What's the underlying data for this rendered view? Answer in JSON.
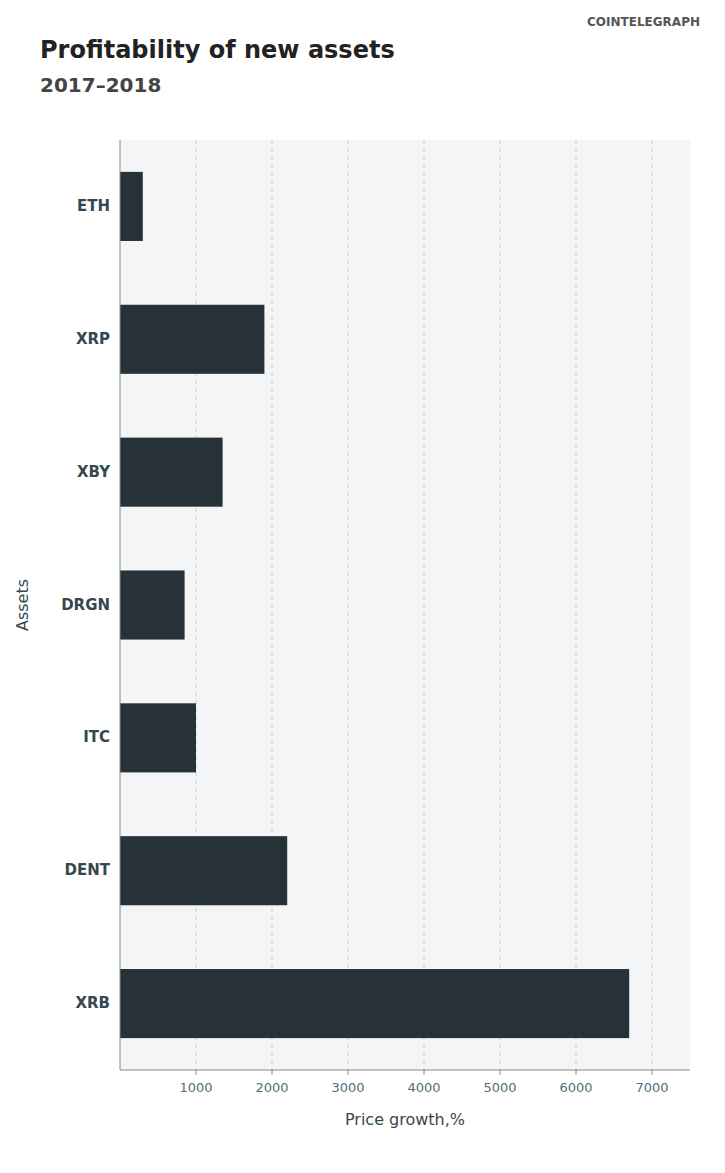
{
  "chart_data": {
    "type": "bar",
    "orientation": "horizontal",
    "title": "Profitability of new assets",
    "subtitle": "2017–2018",
    "x_label": "Price growth,%",
    "y_label": "Assets",
    "annotations": [
      "COINTELEGRAPH"
    ],
    "categories": [
      "ETH",
      "XRP",
      "XBY",
      "DRGN",
      "ITC",
      "DENT",
      "XRB"
    ],
    "values": [
      300,
      1900,
      1350,
      850,
      1000,
      2200,
      6700
    ],
    "color": "#263238",
    "xlim": [
      0,
      7500
    ],
    "xticks": [
      1000,
      2000,
      3000,
      4000,
      5000,
      6000,
      7000
    ],
    "grid": true
  }
}
